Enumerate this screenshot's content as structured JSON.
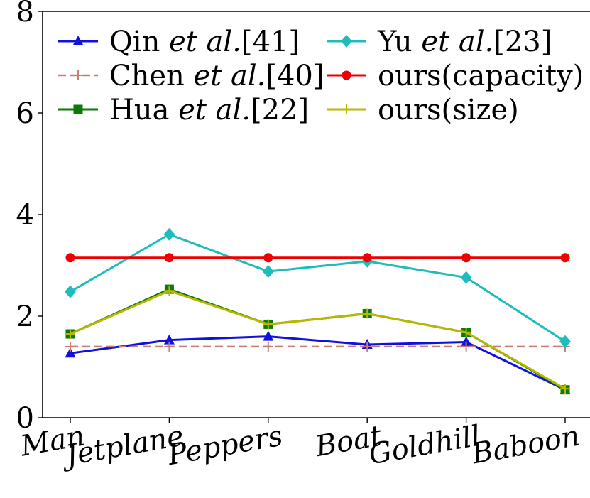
{
  "chart_data": {
    "type": "line",
    "categories": [
      "Man",
      "Jetplane",
      "Peppers",
      "Boat",
      "Goldhill",
      "Baboon"
    ],
    "ylim": [
      0,
      8
    ],
    "yticks": [
      "0",
      "2",
      "4",
      "6",
      "8"
    ],
    "grid": false,
    "legend_position": "top",
    "series": [
      {
        "name": "Qin",
        "name_suffix": "et al.",
        "ref": "[41]",
        "color": "#1010e0",
        "marker": "triangle",
        "dash": "solid",
        "values": [
          1.27,
          1.53,
          1.6,
          1.44,
          1.49,
          0.55
        ]
      },
      {
        "name": "Chen",
        "name_suffix": "et al.",
        "ref": "[40]",
        "color": "#c97d74",
        "marker": "plus",
        "dash": "dashed",
        "values": [
          1.4,
          1.4,
          1.4,
          1.4,
          1.4,
          1.4
        ]
      },
      {
        "name": "Hua",
        "name_suffix": "et al.",
        "ref": "[22]",
        "color": "#0a7a0a",
        "marker": "square",
        "dash": "solid",
        "values": [
          1.65,
          2.53,
          1.84,
          2.05,
          1.68,
          0.55
        ]
      },
      {
        "name": "Yu",
        "name_suffix": "et al.",
        "ref": "[23]",
        "color": "#1fbcbc",
        "marker": "diamond",
        "dash": "solid",
        "values": [
          2.48,
          3.61,
          2.88,
          3.08,
          2.76,
          1.5
        ]
      },
      {
        "name": "ours(capacity)",
        "name_suffix": "",
        "ref": "",
        "color": "#ee0000",
        "marker": "circle",
        "dash": "solid",
        "values": [
          3.15,
          3.15,
          3.15,
          3.15,
          3.15,
          3.15
        ]
      },
      {
        "name": "ours(size)",
        "name_suffix": "",
        "ref": "",
        "color": "#b8b800",
        "marker": "plus",
        "dash": "solid",
        "values": [
          1.65,
          2.5,
          1.84,
          2.05,
          1.68,
          0.57
        ]
      }
    ]
  }
}
